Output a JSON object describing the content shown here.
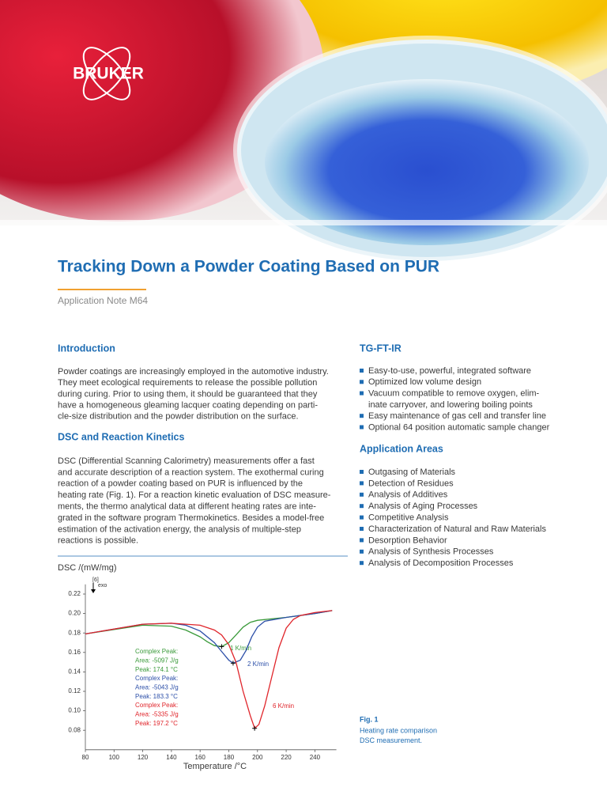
{
  "logo": "BRUKER",
  "header": {
    "title": "Tracking Down a Powder Coating Based on PUR",
    "subtitle": "Application Note M64"
  },
  "introduction": {
    "heading": "Introduction",
    "lines": [
      "Powder coatings are increasingly employed in the automotive industry.",
      "They meet ecological requirements to release the possible pollution",
      "during curing. Prior to using them, it should be guaranteed that they",
      "have a homogeneous gleaming lacquer coating depending on parti-",
      "cle-size distribution and the powder distribution on the surface."
    ]
  },
  "dsc_section": {
    "heading": "DSC and Reaction Kinetics",
    "lines": [
      "DSC (Differential Scanning Calorimetry) measurements offer a fast",
      "and accurate description of a reaction system. The exothermal curing",
      "reaction of a powder coating based on PUR is influenced by the",
      "heating rate (Fig. 1). For a reaction kinetic evaluation of DSC measure-",
      "ments, the thermo analytical data at different heating rates are inte-",
      "grated in the software program Thermokinetics. Besides a model-free",
      "estimation of the activation energy, the analysis of multiple-step",
      "reactions is possible."
    ]
  },
  "tg_ft_ir": {
    "heading": "TG-FT-IR",
    "items": [
      [
        "Easy-to-use, powerful, integrated software"
      ],
      [
        "Optimized low volume design"
      ],
      [
        "Vacuum compatible to remove oxygen, elim-",
        "inate carryover, and lowering boiling points"
      ],
      [
        "Easy maintenance of gas cell and transfer line"
      ],
      [
        "Optional 64 position automatic sample changer"
      ]
    ]
  },
  "application_areas": {
    "heading": "Application Areas",
    "items": [
      "Outgasing of Materials",
      "Detection of Residues",
      "Analysis of Additives",
      "Analysis of Aging Processes",
      "Competitive Analysis",
      "Characterization of Natural and Raw Materials",
      "Desorption Behavior",
      "Analysis of Synthesis Processes",
      "Analysis of Decomposition Processes"
    ]
  },
  "figure_caption": {
    "label": "Fig. 1",
    "lines": [
      "Heating rate comparison",
      "DSC measurement."
    ]
  },
  "chart_data": {
    "type": "line",
    "y_label": "DSC /(mW/mg)",
    "x_label": "Temperature /°C",
    "y_note": "[6]",
    "exo_label": "exo",
    "xlim": [
      80,
      255
    ],
    "ylim": [
      0.06,
      0.23
    ],
    "xticks": [
      80,
      100,
      120,
      140,
      160,
      180,
      200,
      220,
      240
    ],
    "yticks": [
      {
        "value": 0.08,
        "label": "0.08"
      },
      {
        "value": 0.1,
        "label": "0.10"
      },
      0.12,
      0.14,
      0.16,
      0.18,
      {
        "value": 0.2,
        "label": "0.20"
      },
      0.22
    ],
    "series": [
      {
        "name": "1 K/min",
        "color": "#3a9a3a",
        "x": [
          80,
          120,
          140,
          150,
          160,
          165,
          170,
          175,
          180,
          185,
          190,
          195,
          200,
          220,
          240,
          252
        ],
        "values": [
          0.179,
          0.188,
          0.187,
          0.183,
          0.176,
          0.171,
          0.167,
          0.166,
          0.17,
          0.178,
          0.186,
          0.191,
          0.193,
          0.196,
          0.2,
          0.203
        ]
      },
      {
        "name": "2 K/min",
        "color": "#2c4fa8",
        "x": [
          80,
          120,
          140,
          150,
          160,
          170,
          175,
          180,
          183,
          188,
          192,
          196,
          200,
          205,
          220,
          240,
          252
        ],
        "values": [
          0.179,
          0.189,
          0.19,
          0.188,
          0.182,
          0.17,
          0.161,
          0.152,
          0.149,
          0.152,
          0.162,
          0.176,
          0.186,
          0.192,
          0.196,
          0.2,
          0.203
        ]
      },
      {
        "name": "6 K/min",
        "color": "#e0252b",
        "x": [
          80,
          120,
          140,
          160,
          170,
          175,
          180,
          185,
          190,
          195,
          198,
          201,
          205,
          210,
          215,
          220,
          225,
          230,
          240,
          252
        ],
        "values": [
          0.179,
          0.189,
          0.19,
          0.188,
          0.183,
          0.178,
          0.168,
          0.15,
          0.12,
          0.095,
          0.082,
          0.086,
          0.105,
          0.135,
          0.165,
          0.185,
          0.194,
          0.198,
          0.201,
          0.203
        ]
      }
    ],
    "annotations": [
      {
        "color": "#3a9a3a",
        "lines": [
          "Complex Peak:",
          "Area: -5097 J/g",
          "Peak: 174.1 °C"
        ]
      },
      {
        "color": "#2c4fa8",
        "lines": [
          "Complex Peak:",
          "Area: -5043 J/g",
          "Peak: 183.3 °C"
        ]
      },
      {
        "color": "#e0252b",
        "lines": [
          "Complex Peak:",
          "Area: -5335 J/g",
          "Peak: 197.2 °C"
        ]
      }
    ]
  }
}
